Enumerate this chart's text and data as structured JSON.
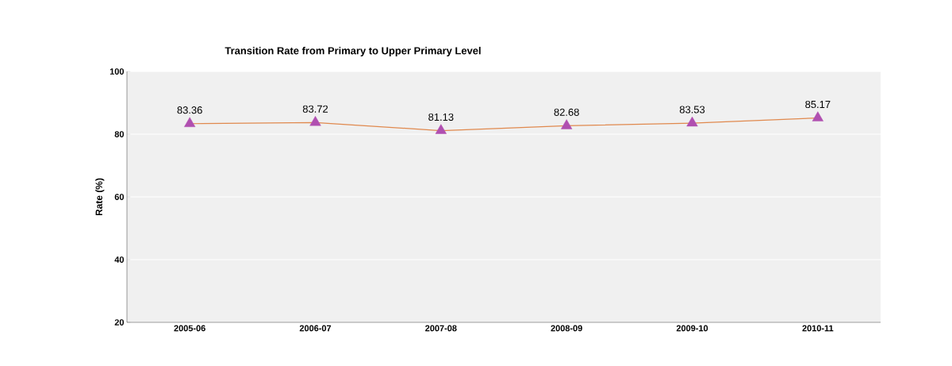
{
  "chart_data": {
    "type": "line",
    "title": "Transition Rate from Primary to Upper Primary Level",
    "ylabel": "Rate (%)",
    "categories": [
      "2005-06",
      "2006-07",
      "2007-08",
      "2008-09",
      "2009-10",
      "2010-11"
    ],
    "series": [
      {
        "color": "#e0894e",
        "colors": [
          "#b04fb0",
          "#b04fb0",
          "#b04fb0",
          "#b04fb0",
          "#b04fb0",
          "#b04fb0"
        ],
        "values": [
          83.36,
          83.72,
          81.13,
          82.68,
          83.53,
          85.17
        ]
      }
    ],
    "ylim": [
      20,
      100
    ],
    "yticks": [
      20,
      40,
      60,
      80,
      100
    ],
    "grid": "y",
    "marker": "triangle",
    "data_labels": true
  }
}
